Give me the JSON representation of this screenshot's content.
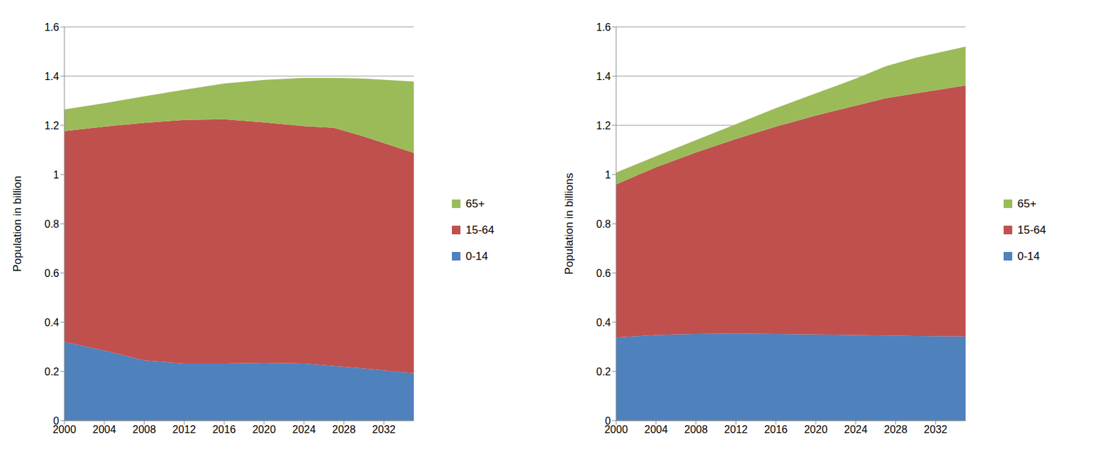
{
  "chart_data": [
    {
      "type": "area",
      "stacked": true,
      "grid": true,
      "legend": "right",
      "y_label": "Population in billion",
      "x": [
        2000,
        2004,
        2008,
        2012,
        2016,
        2020,
        2024,
        2027,
        2030,
        2035
      ],
      "xlim": [
        2000,
        2035
      ],
      "xticks": [
        2000,
        2004,
        2008,
        2012,
        2016,
        2020,
        2024,
        2028,
        2032
      ],
      "ylim": [
        0,
        1.6
      ],
      "yticks": [
        0,
        0.2,
        0.4,
        0.6,
        0.8,
        1,
        1.2,
        1.4,
        1.6
      ],
      "series": [
        {
          "name": "0-14",
          "color": "#4F81BD",
          "values": [
            0.32,
            0.285,
            0.245,
            0.232,
            0.232,
            0.235,
            0.232,
            0.222,
            0.212,
            0.193
          ]
        },
        {
          "name": "15-64",
          "color": "#C0504D",
          "values": [
            0.857,
            0.91,
            0.965,
            0.99,
            0.993,
            0.977,
            0.965,
            0.968,
            0.943,
            0.895
          ]
        },
        {
          "name": "65+",
          "color": "#9BBB59",
          "values": [
            0.088,
            0.095,
            0.108,
            0.123,
            0.145,
            0.173,
            0.196,
            0.203,
            0.235,
            0.29
          ]
        }
      ]
    },
    {
      "type": "area",
      "stacked": true,
      "grid": true,
      "legend": "right",
      "y_label": "Population in billions",
      "x": [
        2000,
        2004,
        2008,
        2012,
        2016,
        2020,
        2024,
        2027,
        2030,
        2035
      ],
      "xlim": [
        2000,
        2035
      ],
      "xticks": [
        2000,
        2004,
        2008,
        2012,
        2016,
        2020,
        2024,
        2028,
        2032
      ],
      "ylim": [
        0,
        1.6
      ],
      "yticks": [
        0,
        0.2,
        0.4,
        0.6,
        0.8,
        1,
        1.2,
        1.4,
        1.6
      ],
      "series": [
        {
          "name": "0-14",
          "color": "#4F81BD",
          "values": [
            0.338,
            0.348,
            0.352,
            0.354,
            0.352,
            0.35,
            0.348,
            0.346,
            0.344,
            0.342
          ]
        },
        {
          "name": "15-64",
          "color": "#C0504D",
          "values": [
            0.622,
            0.682,
            0.738,
            0.791,
            0.843,
            0.89,
            0.932,
            0.964,
            0.986,
            1.02
          ]
        },
        {
          "name": "65+",
          "color": "#9BBB59",
          "values": [
            0.048,
            0.045,
            0.05,
            0.06,
            0.075,
            0.09,
            0.11,
            0.13,
            0.145,
            0.158
          ]
        }
      ]
    }
  ]
}
